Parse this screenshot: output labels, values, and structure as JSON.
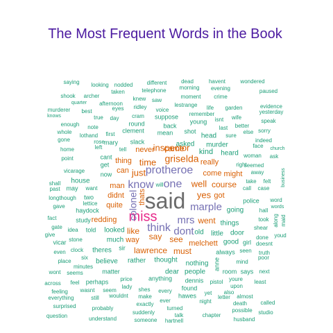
{
  "chart_data": {
    "type": "wordcloud",
    "title": "The Most Frequent Words in the Book",
    "palette": {
      "t1": "#6b6b6b",
      "t2": "#e7298a",
      "t3": "#7570b3",
      "t4": "#d95f02",
      "t5": "#1b9e77"
    },
    "words": [
      {
        "text": "said",
        "tier": 1
      },
      {
        "text": "miss",
        "tier": 2
      },
      {
        "text": "protheroe",
        "tier": 3
      },
      {
        "text": "know",
        "tier": 3
      },
      {
        "text": "one",
        "tier": 3
      },
      {
        "text": "think",
        "tier": 3
      },
      {
        "text": "marple",
        "tier": 3
      },
      {
        "text": "mrs",
        "tier": 3
      },
      {
        "text": "colonel",
        "tier": 3
      },
      {
        "text": "dont",
        "tier": 3
      },
      {
        "text": "griselda",
        "tier": 4
      },
      {
        "text": "inspector",
        "tier": 4
      },
      {
        "text": "time",
        "tier": 4
      },
      {
        "text": "came",
        "tier": 4
      },
      {
        "text": "just",
        "tier": 4
      },
      {
        "text": "well",
        "tier": 4
      },
      {
        "text": "yes",
        "tier": 4
      },
      {
        "text": "say",
        "tier": 4
      },
      {
        "text": "see",
        "tier": 4
      },
      {
        "text": "must",
        "tier": 4
      },
      {
        "text": "lawrence",
        "tier": 4
      },
      {
        "text": "course",
        "tier": 4
      },
      {
        "text": "went",
        "tier": 4
      },
      {
        "text": "like",
        "tier": 4
      },
      {
        "text": "way",
        "tier": 4
      },
      {
        "text": "quite",
        "tier": 4
      },
      {
        "text": "didnt",
        "tier": 4
      },
      {
        "text": "man",
        "tier": 4
      },
      {
        "text": "redding",
        "tier": 4
      },
      {
        "text": "melchett",
        "tier": 4
      },
      {
        "text": "got",
        "tier": 4
      },
      {
        "text": "thats",
        "tier": 4
      },
      {
        "text": "come",
        "tier": 4
      },
      {
        "text": "might",
        "tier": 4
      },
      {
        "text": "really",
        "tier": 4
      },
      {
        "text": "thing",
        "tier": 4
      },
      {
        "text": "never",
        "tier": 4
      },
      {
        "text": "can",
        "tier": 4
      },
      {
        "text": "saying",
        "tier": 5
      },
      {
        "text": "looking",
        "tier": 5
      },
      {
        "text": "nodded",
        "tier": 5
      },
      {
        "text": "different",
        "tier": 5
      },
      {
        "text": "dead",
        "tier": 5
      },
      {
        "text": "havent",
        "tier": 5
      },
      {
        "text": "wondered",
        "tier": 5
      },
      {
        "text": "taken",
        "tier": 5
      },
      {
        "text": "telephone",
        "tier": 5
      },
      {
        "text": "morning",
        "tier": 5
      },
      {
        "text": "evening",
        "tier": 5
      },
      {
        "text": "paused",
        "tier": 5
      },
      {
        "text": "shook",
        "tier": 5
      },
      {
        "text": "archer",
        "tier": 5
      },
      {
        "text": "knew",
        "tier": 5
      },
      {
        "text": "moment",
        "tier": 5
      },
      {
        "text": "crime",
        "tier": 5
      },
      {
        "text": "quarter",
        "tier": 5
      },
      {
        "text": "afternoon",
        "tier": 5
      },
      {
        "text": "saw",
        "tier": 5
      },
      {
        "text": "lestrange",
        "tier": 5
      },
      {
        "text": "life",
        "tier": 5
      },
      {
        "text": "garden",
        "tier": 5
      },
      {
        "text": "evidence",
        "tier": 5
      },
      {
        "text": "murderer",
        "tier": 5
      },
      {
        "text": "best",
        "tier": 5
      },
      {
        "text": "eyes",
        "tier": 5
      },
      {
        "text": "ridley",
        "tier": 5
      },
      {
        "text": "voice",
        "tier": 5
      },
      {
        "text": "remember",
        "tier": 5
      },
      {
        "text": "yesterday",
        "tier": 5
      },
      {
        "text": "knows",
        "tier": 5
      },
      {
        "text": "true",
        "tier": 5
      },
      {
        "text": "day",
        "tier": 5
      },
      {
        "text": "cram",
        "tier": 5
      },
      {
        "text": "suppose",
        "tier": 5
      },
      {
        "text": "young",
        "tier": 5
      },
      {
        "text": "isnt",
        "tier": 5
      },
      {
        "text": "wife",
        "tier": 5
      },
      {
        "text": "speak",
        "tier": 5
      },
      {
        "text": "enough",
        "tier": 5
      },
      {
        "text": "note",
        "tier": 5
      },
      {
        "text": "round",
        "tier": 5
      },
      {
        "text": "back",
        "tier": 5
      },
      {
        "text": "last",
        "tier": 5
      },
      {
        "text": "better",
        "tier": 5
      },
      {
        "text": "whole",
        "tier": 5
      },
      {
        "text": "lothand",
        "tier": 5
      },
      {
        "text": "first",
        "tier": 5
      },
      {
        "text": "kind",
        "tier": 5
      },
      {
        "text": "clement",
        "tier": 5
      },
      {
        "text": "mean",
        "tier": 5
      },
      {
        "text": "shot",
        "tier": 5
      },
      {
        "text": "head",
        "tier": 5
      },
      {
        "text": "sure",
        "tier": 5
      },
      {
        "text": "else",
        "tier": 5
      },
      {
        "text": "sorry",
        "tier": 5
      },
      {
        "text": "gone",
        "tier": 5
      },
      {
        "text": "rose",
        "tier": 5
      },
      {
        "text": "mary",
        "tier": 5
      },
      {
        "text": "slack",
        "tier": 5
      },
      {
        "text": "asked",
        "tier": 5
      },
      {
        "text": "murder",
        "tier": 5
      },
      {
        "text": "indeed",
        "tier": 5
      },
      {
        "text": "home",
        "tier": 5
      },
      {
        "text": "left",
        "tier": 5
      },
      {
        "text": "tell",
        "tier": 5
      },
      {
        "text": "fact",
        "tier": 5
      },
      {
        "text": "heard",
        "tier": 5
      },
      {
        "text": "face",
        "tier": 5
      },
      {
        "text": "church",
        "tier": 5
      },
      {
        "text": "point",
        "tier": 5
      },
      {
        "text": "cant",
        "tier": 5
      },
      {
        "text": "woman",
        "tier": 5
      },
      {
        "text": "ask",
        "tier": 5
      },
      {
        "text": "vicarage",
        "tier": 5
      },
      {
        "text": "get",
        "tier": 5
      },
      {
        "text": "right",
        "tier": 5
      },
      {
        "text": "seemed",
        "tier": 5
      },
      {
        "text": "house",
        "tier": 5
      },
      {
        "text": "now",
        "tier": 5
      },
      {
        "text": "away",
        "tier": 5
      },
      {
        "text": "shall",
        "tier": 5
      },
      {
        "text": "take",
        "tier": 5
      },
      {
        "text": "felt",
        "tier": 5
      },
      {
        "text": "past",
        "tier": 5
      },
      {
        "text": "may",
        "tier": 5
      },
      {
        "text": "want",
        "tier": 5
      },
      {
        "text": "will",
        "tier": 5
      },
      {
        "text": "call",
        "tier": 5
      },
      {
        "text": "case",
        "tier": 5
      },
      {
        "text": "business",
        "tier": 5
      },
      {
        "text": "longthough",
        "tier": 5
      },
      {
        "text": "lettice",
        "tier": 5
      },
      {
        "text": "police",
        "tier": 5
      },
      {
        "text": "word",
        "tier": 5
      },
      {
        "text": "gave",
        "tier": 5
      },
      {
        "text": "two",
        "tier": 5
      },
      {
        "text": "hall",
        "tier": 5
      },
      {
        "text": "haydock",
        "tier": 5
      },
      {
        "text": "going",
        "tier": 5
      },
      {
        "text": "words",
        "tier": 5
      },
      {
        "text": "study",
        "tier": 5
      },
      {
        "text": "took",
        "tier": 5
      },
      {
        "text": "along",
        "tier": 5
      },
      {
        "text": "maid",
        "tier": 5
      },
      {
        "text": "gate",
        "tier": 5
      },
      {
        "text": "things",
        "tier": 5
      },
      {
        "text": "shear",
        "tier": 5
      },
      {
        "text": "idea",
        "tier": 5
      },
      {
        "text": "told",
        "tier": 5
      },
      {
        "text": "looked",
        "tier": 5
      },
      {
        "text": "old",
        "tier": 5
      },
      {
        "text": "little",
        "tier": 5
      },
      {
        "text": "door",
        "tier": 5
      },
      {
        "text": "give",
        "tier": 5
      },
      {
        "text": "youd",
        "tier": 5
      },
      {
        "text": "vicar",
        "tier": 5
      },
      {
        "text": "stone",
        "tier": 5
      },
      {
        "text": "much",
        "tier": 5
      },
      {
        "text": "good",
        "tier": 5
      },
      {
        "text": "girl",
        "tier": 5
      },
      {
        "text": "done",
        "tier": 5
      },
      {
        "text": "even",
        "tier": 5
      },
      {
        "text": "clock",
        "tier": 5
      },
      {
        "text": "theres",
        "tier": 5
      },
      {
        "text": "sir",
        "tier": 5
      },
      {
        "text": "always",
        "tier": 5
      },
      {
        "text": "seen",
        "tier": 5
      },
      {
        "text": "doesnt",
        "tier": 5
      },
      {
        "text": "truth",
        "tier": 5
      },
      {
        "text": "place",
        "tier": 5
      },
      {
        "text": "six",
        "tier": 5
      },
      {
        "text": "believe",
        "tier": 5
      },
      {
        "text": "rather",
        "tier": 5
      },
      {
        "text": "thought",
        "tier": 5
      },
      {
        "text": "nothing",
        "tier": 5
      },
      {
        "text": "mind",
        "tier": 5
      },
      {
        "text": "poor",
        "tier": 5
      },
      {
        "text": "minutes",
        "tier": 5
      },
      {
        "text": "matter",
        "tier": 5
      },
      {
        "text": "dear",
        "tier": 5
      },
      {
        "text": "people",
        "tier": 5
      },
      {
        "text": "anne",
        "tier": 5
      },
      {
        "text": "room",
        "tier": 5
      },
      {
        "text": "says",
        "tier": 5
      },
      {
        "text": "next",
        "tier": 5
      },
      {
        "text": "wont",
        "tier": 5
      },
      {
        "text": "seems",
        "tier": 5
      },
      {
        "text": "price",
        "tier": 5
      },
      {
        "text": "anything",
        "tier": 5
      },
      {
        "text": "dennis",
        "tier": 5
      },
      {
        "text": "pistol",
        "tier": 5
      },
      {
        "text": "youre",
        "tier": 5
      },
      {
        "text": "across",
        "tier": 5
      },
      {
        "text": "feel",
        "tier": 5
      },
      {
        "text": "perhaps",
        "tier": 5
      },
      {
        "text": "lady",
        "tier": 5
      },
      {
        "text": "found",
        "tier": 5
      },
      {
        "text": "upon",
        "tier": 5
      },
      {
        "text": "least",
        "tier": 5
      },
      {
        "text": "feeling",
        "tier": 5
      },
      {
        "text": "wasnt",
        "tier": 5
      },
      {
        "text": "seem",
        "tier": 5
      },
      {
        "text": "shes",
        "tier": 5
      },
      {
        "text": "every",
        "tier": 5
      },
      {
        "text": "yet",
        "tier": 5
      },
      {
        "text": "also",
        "tier": 5
      },
      {
        "text": "everything",
        "tier": 5
      },
      {
        "text": "still",
        "tier": 5
      },
      {
        "text": "wouldnt",
        "tier": 5
      },
      {
        "text": "make",
        "tier": 5
      },
      {
        "text": "hawes",
        "tier": 5
      },
      {
        "text": "letter",
        "tier": 5
      },
      {
        "text": "almost",
        "tier": 5
      },
      {
        "text": "ever",
        "tier": 5
      },
      {
        "text": "night",
        "tier": 5
      },
      {
        "text": "death",
        "tier": 5
      },
      {
        "text": "called",
        "tier": 5
      },
      {
        "text": "surprised",
        "tier": 5
      },
      {
        "text": "exactly",
        "tier": 5
      },
      {
        "text": "turned",
        "tier": 5
      },
      {
        "text": "probably",
        "tier": 5
      },
      {
        "text": "talk",
        "tier": 5
      },
      {
        "text": "possible",
        "tier": 5
      },
      {
        "text": "studio",
        "tier": 5
      },
      {
        "text": "suddenly",
        "tier": 5
      },
      {
        "text": "chapter",
        "tier": 5
      },
      {
        "text": "question",
        "tier": 5
      },
      {
        "text": "understand",
        "tier": 5
      },
      {
        "text": "someone",
        "tier": 5
      },
      {
        "text": "hartnell",
        "tier": 5
      },
      {
        "text": "husband",
        "tier": 5
      }
    ]
  }
}
